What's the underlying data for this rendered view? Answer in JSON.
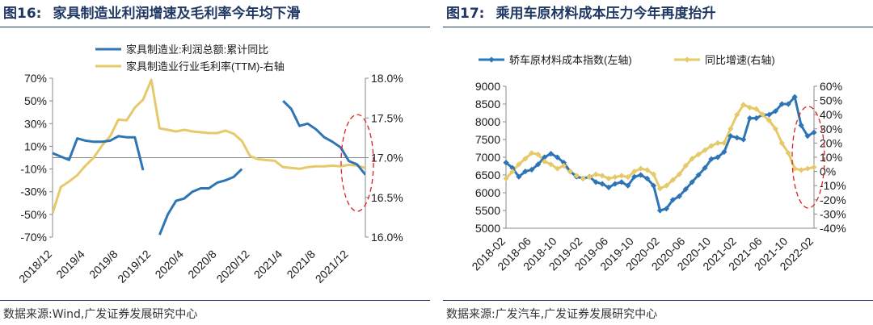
{
  "left": {
    "title_prefix": "图16:",
    "title_text": "家具制造业利润增速及毛利率今年均下滑",
    "source": "数据来源:Wind,广发证券发展研究中心"
  },
  "right": {
    "title_prefix": "图17:",
    "title_text": "乘用车原材料成本压力今年再度抬升",
    "source": "数据来源:广发汽车,广发证券发展研究中心"
  },
  "colors": {
    "blue": "#2e75b6",
    "gold": "#e6c96a",
    "title": "#1f3864",
    "highlight": "#d92020"
  },
  "chart_data": [
    {
      "type": "line",
      "x": [
        "2018/12",
        "2019/1",
        "2019/2",
        "2019/3",
        "2019/4",
        "2019/5",
        "2019/6",
        "2019/7",
        "2019/8",
        "2019/9",
        "2019/10",
        "2019/11",
        "2019/12",
        "2020/1",
        "2020/2",
        "2020/3",
        "2020/4",
        "2020/5",
        "2020/6",
        "2020/7",
        "2020/8",
        "2020/9",
        "2020/10",
        "2020/11",
        "2020/12",
        "2021/1",
        "2021/2",
        "2021/3",
        "2021/4",
        "2021/5",
        "2021/6",
        "2021/7",
        "2021/8",
        "2021/9",
        "2021/10",
        "2021/11",
        "2021/12",
        "2022/1",
        "2022/2"
      ],
      "x_tick_labels": [
        "2018/12",
        "2019/4",
        "2019/8",
        "2019/12",
        "2020/4",
        "2020/8",
        "2020/12",
        "2021/4",
        "2021/8",
        "2021/12"
      ],
      "series": [
        {
          "name": "家具制造业:利润总额:累计同比",
          "axis": "left",
          "values": [
            4,
            1,
            -2,
            17,
            15,
            14,
            14,
            15,
            19,
            18,
            18,
            -11,
            null,
            -68,
            -50,
            -38,
            -36,
            -30,
            -27,
            -27,
            -22,
            -20,
            -17,
            -10,
            null,
            null,
            null,
            null,
            50,
            43,
            28,
            30,
            25,
            18,
            14,
            9,
            -3,
            -6,
            -15
          ]
        },
        {
          "name": "家具制造业行业毛利率(TTM)-右轴",
          "axis": "right",
          "values": [
            16.3,
            16.63,
            16.7,
            16.78,
            16.9,
            17.0,
            17.15,
            17.27,
            17.48,
            17.47,
            17.63,
            17.73,
            17.98,
            17.37,
            17.35,
            17.33,
            17.35,
            17.33,
            17.32,
            17.31,
            17.31,
            17.34,
            17.3,
            17.21,
            17.02,
            16.98,
            16.97,
            16.96,
            16.88,
            16.87,
            16.86,
            16.88,
            16.89,
            16.89,
            16.9,
            16.89,
            16.91,
            16.9,
            16.87
          ]
        }
      ],
      "y_left": {
        "min": -70,
        "max": 70,
        "step": 20,
        "tick_labels": [
          "70%",
          "50%",
          "30%",
          "10%",
          "-10%",
          "-30%",
          "-50%",
          "-70%"
        ]
      },
      "y_right": {
        "min": 16.0,
        "max": 18.0,
        "tick_labels": [
          "18.0%",
          "17.5%",
          "17.0%",
          "16.5%",
          "16.0%"
        ]
      },
      "legend": [
        "家具制造业:利润总额:累计同比",
        "家具制造业行业毛利率(TTM)-右轴"
      ],
      "grid": false
    },
    {
      "type": "line",
      "x": [
        "2018-02",
        "2018-03",
        "2018-04",
        "2018-05",
        "2018-06",
        "2018-07",
        "2018-08",
        "2018-09",
        "2018-10",
        "2018-11",
        "2018-12",
        "2019-01",
        "2019-02",
        "2019-03",
        "2019-04",
        "2019-05",
        "2019-06",
        "2019-07",
        "2019-08",
        "2019-09",
        "2019-10",
        "2019-11",
        "2019-12",
        "2020-01",
        "2020-02",
        "2020-03",
        "2020-04",
        "2020-05",
        "2020-06",
        "2020-07",
        "2020-08",
        "2020-09",
        "2020-10",
        "2020-11",
        "2020-12",
        "2021-01",
        "2021-02",
        "2021-03",
        "2021-04",
        "2021-05",
        "2021-06",
        "2021-07",
        "2021-08",
        "2021-09",
        "2021-10",
        "2021-11",
        "2021-12",
        "2022-01",
        "2022-02"
      ],
      "x_tick_labels": [
        "2018-02",
        "2018-06",
        "2018-10",
        "2019-02",
        "2019-06",
        "2019-10",
        "2020-02",
        "2020-06",
        "2020-10",
        "2021-02",
        "2021-06",
        "2021-10",
        "2022-02"
      ],
      "series": [
        {
          "name": "轿车原材料成本指数(左轴)",
          "axis": "left",
          "values": [
            6850,
            6700,
            6450,
            6600,
            6650,
            6800,
            7000,
            7100,
            7000,
            6850,
            6600,
            6450,
            6400,
            6450,
            6300,
            6250,
            6150,
            6250,
            6300,
            6200,
            6450,
            6500,
            6400,
            6200,
            5500,
            5550,
            5800,
            5900,
            6100,
            6300,
            6500,
            6700,
            6950,
            7000,
            7150,
            7600,
            7550,
            7500,
            8100,
            8100,
            8200,
            8200,
            8300,
            8500,
            8500,
            8700,
            7900,
            7600,
            7700
          ]
        },
        {
          "name": "同比增速(右轴)",
          "axis": "right",
          "values": [
            -5,
            0,
            5,
            9,
            13,
            12,
            7,
            5,
            2,
            4,
            0,
            -3,
            -5,
            -4,
            -2,
            -3,
            -5,
            -4,
            -3,
            -4,
            0,
            2,
            1,
            -2,
            -12,
            -10,
            -6,
            -2,
            4,
            9,
            12,
            15,
            18,
            20,
            20,
            30,
            40,
            47,
            45,
            44,
            40,
            36,
            30,
            20,
            13,
            2,
            1,
            2,
            3
          ]
        }
      ],
      "y_left": {
        "min": 5000,
        "max": 9000,
        "tick_labels": [
          "9000",
          "8500",
          "8000",
          "7500",
          "7000",
          "6500",
          "6000",
          "5500",
          "5000"
        ]
      },
      "y_right": {
        "min": -40,
        "max": 60,
        "tick_labels": [
          "60%",
          "50%",
          "40%",
          "30%",
          "20%",
          "10%",
          "0%",
          "-10%",
          "-20%",
          "-30%",
          "-40%"
        ]
      },
      "legend": [
        "轿车原材料成本指数(左轴)",
        "同比增速(右轴)"
      ],
      "grid": false
    }
  ]
}
